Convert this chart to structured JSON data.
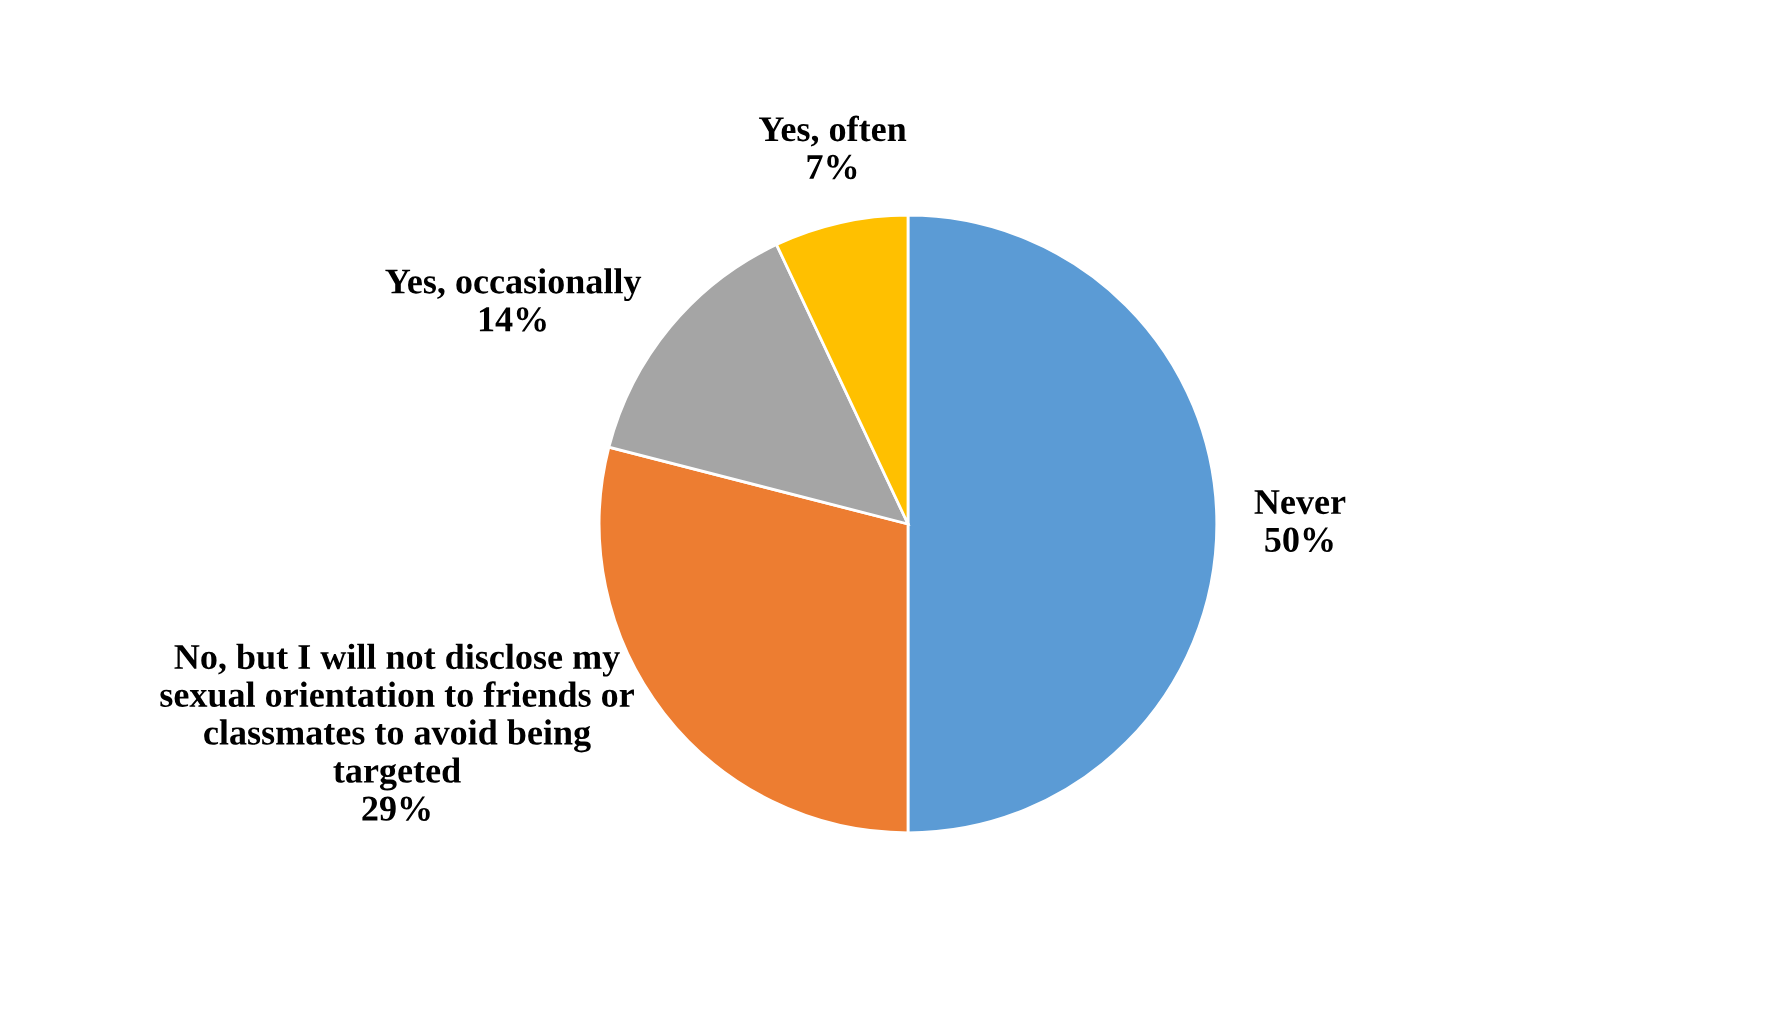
{
  "chart_data": {
    "type": "pie",
    "categories": [
      "Never",
      "No, but I will not disclose my sexual orientation to friends or classmates to avoid being targeted",
      "Yes, occasionally",
      "Yes, often"
    ],
    "values": [
      50,
      29,
      14,
      7
    ],
    "colors": [
      "#5b9bd5",
      "#ed7d31",
      "#a5a5a5",
      "#ffc000"
    ],
    "value_labels": [
      "50%",
      "29%",
      "14%",
      "7%"
    ]
  }
}
